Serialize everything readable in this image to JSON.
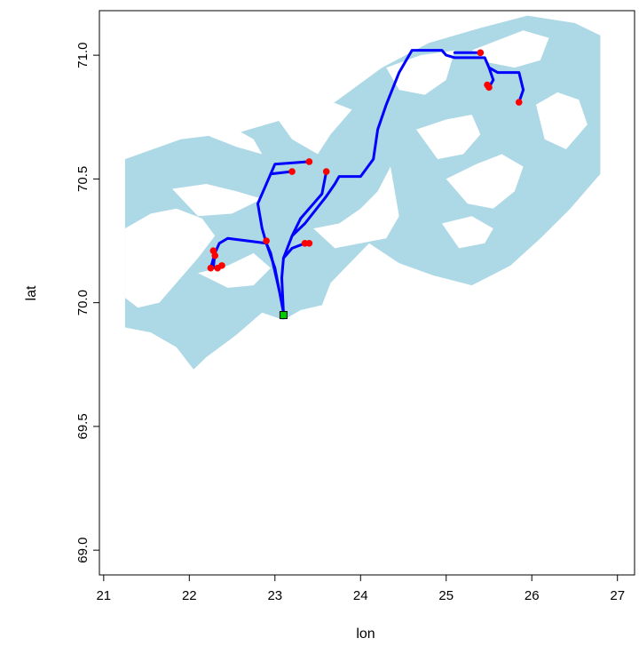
{
  "chart_data": {
    "type": "map",
    "xlabel": "lon",
    "ylabel": "lat",
    "xlim": [
      20.95,
      27.2
    ],
    "ylim": [
      68.9,
      71.18
    ],
    "x_ticks": [
      21,
      22,
      23,
      24,
      25,
      26,
      27
    ],
    "x_tick_labels": [
      "21",
      "22",
      "23",
      "24",
      "25",
      "26",
      "27"
    ],
    "y_ticks": [
      69.0,
      69.5,
      70.0,
      70.5,
      71.0
    ],
    "y_tick_labels": [
      "69.0",
      "69.5",
      "70.0",
      "70.5",
      "71.0"
    ],
    "grid": false,
    "colors": {
      "water": "#add8e6",
      "route": "#0000ff",
      "stations": "#ff0000",
      "origin_fill": "#00cc00",
      "axis": "#000000"
    },
    "water_polygons": [
      [
        [
          21.25,
          70.58
        ],
        [
          21.9,
          70.66
        ],
        [
          22.6,
          70.69
        ],
        [
          23.1,
          70.74
        ],
        [
          23.7,
          70.81
        ],
        [
          24.25,
          70.95
        ],
        [
          24.8,
          71.05
        ],
        [
          25.4,
          71.11
        ],
        [
          25.95,
          71.16
        ],
        [
          26.5,
          71.13
        ],
        [
          26.8,
          71.08
        ],
        [
          26.8,
          70.52
        ],
        [
          26.45,
          70.38
        ],
        [
          26.1,
          70.26
        ],
        [
          25.75,
          70.15
        ],
        [
          25.3,
          70.07
        ],
        [
          24.85,
          70.11
        ],
        [
          24.45,
          70.16
        ],
        [
          24.1,
          70.24
        ],
        [
          23.65,
          70.08
        ],
        [
          23.55,
          69.99
        ],
        [
          23.3,
          69.97
        ],
        [
          23.1,
          69.93
        ],
        [
          22.85,
          69.96
        ],
        [
          22.55,
          69.87
        ],
        [
          22.2,
          69.78
        ],
        [
          22.05,
          69.73
        ],
        [
          21.85,
          69.82
        ],
        [
          21.55,
          69.88
        ],
        [
          21.25,
          69.9
        ]
      ]
    ],
    "land_polygons": [
      [
        [
          22.0,
          70.74
        ],
        [
          22.25,
          70.67
        ],
        [
          22.55,
          70.63
        ],
        [
          22.85,
          70.6
        ],
        [
          22.75,
          70.66
        ],
        [
          22.45,
          70.72
        ],
        [
          22.15,
          70.76
        ]
      ],
      [
        [
          22.95,
          70.78
        ],
        [
          23.2,
          70.66
        ],
        [
          23.5,
          70.6
        ],
        [
          23.65,
          70.68
        ],
        [
          23.9,
          70.78
        ],
        [
          23.6,
          70.82
        ],
        [
          23.25,
          70.83
        ]
      ],
      [
        [
          21.25,
          70.3
        ],
        [
          21.55,
          70.36
        ],
        [
          21.85,
          70.38
        ],
        [
          22.15,
          70.34
        ],
        [
          22.3,
          70.27
        ],
        [
          22.1,
          70.18
        ],
        [
          21.85,
          70.08
        ],
        [
          21.65,
          70.0
        ],
        [
          21.4,
          69.98
        ],
        [
          21.25,
          70.02
        ]
      ],
      [
        [
          21.8,
          70.46
        ],
        [
          22.2,
          70.48
        ],
        [
          22.55,
          70.45
        ],
        [
          22.85,
          70.42
        ],
        [
          22.5,
          70.36
        ],
        [
          22.1,
          70.35
        ]
      ],
      [
        [
          22.1,
          70.12
        ],
        [
          22.45,
          70.15
        ],
        [
          22.75,
          70.2
        ],
        [
          22.95,
          70.14
        ],
        [
          22.75,
          70.07
        ],
        [
          22.45,
          70.06
        ]
      ],
      [
        [
          23.45,
          70.3
        ],
        [
          23.75,
          70.32
        ],
        [
          24.0,
          70.38
        ],
        [
          24.2,
          70.45
        ],
        [
          24.35,
          70.55
        ],
        [
          24.45,
          70.35
        ],
        [
          24.3,
          70.26
        ],
        [
          24.0,
          70.24
        ],
        [
          23.7,
          70.22
        ]
      ],
      [
        [
          24.3,
          70.95
        ],
        [
          24.7,
          71.0
        ],
        [
          25.1,
          71.02
        ],
        [
          25.0,
          70.9
        ],
        [
          24.75,
          70.84
        ],
        [
          24.45,
          70.86
        ]
      ],
      [
        [
          24.65,
          70.7
        ],
        [
          25.0,
          70.74
        ],
        [
          25.3,
          70.76
        ],
        [
          25.4,
          70.68
        ],
        [
          25.2,
          70.6
        ],
        [
          24.9,
          70.58
        ]
      ],
      [
        [
          25.3,
          71.02
        ],
        [
          25.6,
          71.06
        ],
        [
          25.9,
          71.1
        ],
        [
          26.2,
          71.07
        ],
        [
          26.1,
          70.98
        ],
        [
          25.8,
          70.95
        ],
        [
          25.5,
          70.97
        ]
      ],
      [
        [
          25.0,
          70.5
        ],
        [
          25.35,
          70.56
        ],
        [
          25.65,
          70.6
        ],
        [
          25.9,
          70.55
        ],
        [
          25.8,
          70.45
        ],
        [
          25.55,
          70.38
        ],
        [
          25.25,
          70.4
        ]
      ],
      [
        [
          24.95,
          70.32
        ],
        [
          25.3,
          70.35
        ],
        [
          25.55,
          70.3
        ],
        [
          25.45,
          70.24
        ],
        [
          25.15,
          70.22
        ]
      ],
      [
        [
          26.05,
          70.8
        ],
        [
          26.3,
          70.85
        ],
        [
          26.55,
          70.82
        ],
        [
          26.65,
          70.72
        ],
        [
          26.4,
          70.62
        ],
        [
          26.15,
          70.66
        ]
      ]
    ],
    "routes": [
      [
        [
          23.1,
          69.96
        ],
        [
          23.05,
          70.05
        ],
        [
          23.0,
          70.14
        ],
        [
          22.9,
          70.24
        ],
        [
          22.85,
          70.3
        ],
        [
          22.8,
          70.4
        ],
        [
          22.95,
          70.52
        ],
        [
          23.2,
          70.53
        ]
      ],
      [
        [
          22.95,
          70.52
        ],
        [
          23.0,
          70.56
        ],
        [
          23.4,
          70.57
        ]
      ],
      [
        [
          23.1,
          69.96
        ],
        [
          23.08,
          70.1
        ],
        [
          23.1,
          70.18
        ],
        [
          23.2,
          70.27
        ],
        [
          23.3,
          70.34
        ],
        [
          23.45,
          70.4
        ],
        [
          23.55,
          70.44
        ],
        [
          23.6,
          70.53
        ]
      ],
      [
        [
          23.1,
          70.18
        ],
        [
          23.2,
          70.22
        ],
        [
          23.35,
          70.24
        ]
      ],
      [
        [
          23.2,
          70.27
        ],
        [
          23.35,
          70.32
        ],
        [
          23.6,
          70.43
        ],
        [
          23.7,
          70.48
        ],
        [
          23.75,
          70.51
        ],
        [
          24.0,
          70.51
        ],
        [
          24.15,
          70.58
        ],
        [
          24.2,
          70.7
        ],
        [
          24.3,
          70.8
        ],
        [
          24.45,
          70.93
        ],
        [
          24.6,
          71.02
        ],
        [
          24.95,
          71.02
        ],
        [
          25.0,
          71.0
        ],
        [
          25.1,
          70.99
        ],
        [
          25.45,
          70.99
        ],
        [
          25.5,
          70.95
        ],
        [
          25.6,
          70.93
        ],
        [
          25.85,
          70.93
        ],
        [
          25.9,
          70.86
        ],
        [
          25.85,
          70.81
        ]
      ],
      [
        [
          25.1,
          71.01
        ],
        [
          25.4,
          71.01
        ]
      ],
      [
        [
          25.5,
          70.95
        ],
        [
          25.55,
          70.9
        ],
        [
          25.5,
          70.87
        ]
      ],
      [
        [
          23.05,
          70.05
        ],
        [
          22.95,
          70.2
        ],
        [
          22.9,
          70.24
        ],
        [
          22.45,
          70.26
        ],
        [
          22.35,
          70.24
        ],
        [
          22.3,
          70.2
        ],
        [
          22.28,
          70.14
        ],
        [
          22.4,
          70.15
        ]
      ],
      [
        [
          22.3,
          70.2
        ],
        [
          22.25,
          70.14
        ]
      ]
    ],
    "stations": [
      [
        23.2,
        70.53
      ],
      [
        23.4,
        70.57
      ],
      [
        23.6,
        70.53
      ],
      [
        23.35,
        70.24
      ],
      [
        23.4,
        70.24
      ],
      [
        22.9,
        70.25
      ],
      [
        22.28,
        70.21
      ],
      [
        22.3,
        70.19
      ],
      [
        22.25,
        70.14
      ],
      [
        22.33,
        70.14
      ],
      [
        22.38,
        70.15
      ],
      [
        25.4,
        71.01
      ],
      [
        25.5,
        70.87
      ],
      [
        25.48,
        70.88
      ],
      [
        25.85,
        70.81
      ]
    ],
    "origin": [
      23.1,
      69.95
    ]
  }
}
